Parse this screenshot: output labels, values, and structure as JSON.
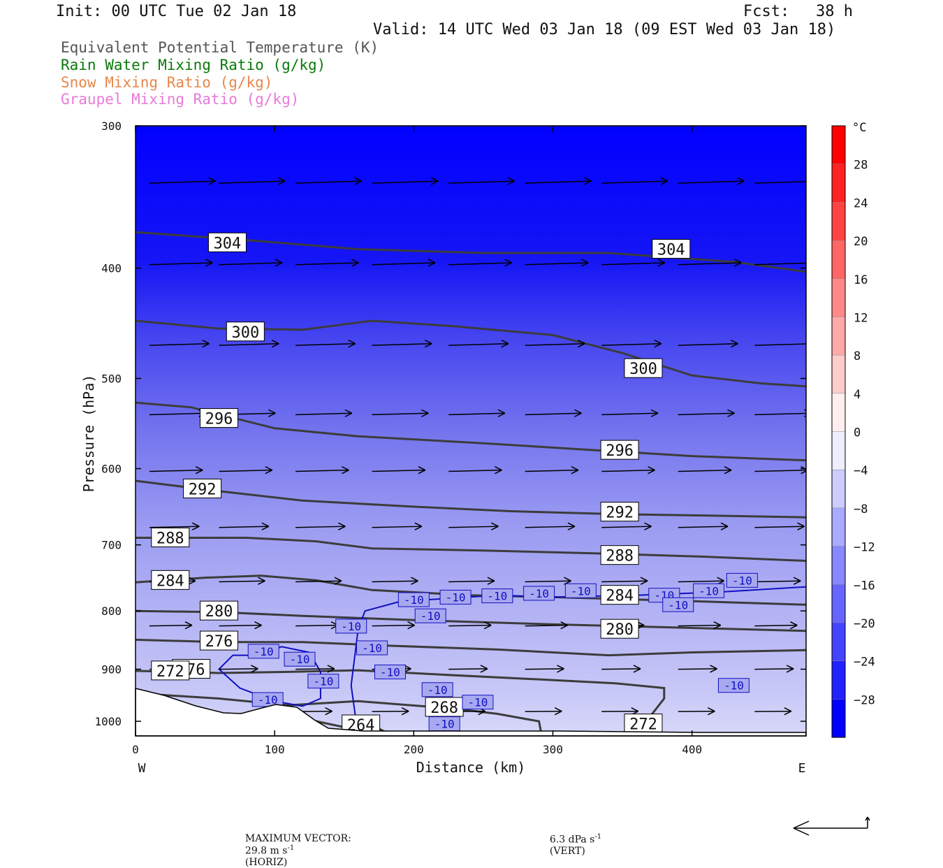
{
  "header": {
    "init": "Init: 00 UTC Tue 02 Jan 18",
    "fcst_label": "Fcst:",
    "fcst_value": "38 h",
    "valid": "Valid: 14 UTC Wed 03 Jan 18 (09 EST Wed 03 Jan 18)"
  },
  "legend": {
    "items": [
      {
        "label": "Equivalent Potential Temperature (K)",
        "color": "#555555"
      },
      {
        "label": "Rain Water Mixing Ratio (g/kg)",
        "color": "#0a7a0a"
      },
      {
        "label": "Snow Mixing Ratio (g/kg)",
        "color": "#e8874a"
      },
      {
        "label": "Graupel Mixing Ratio (g/kg)",
        "color": "#e87ad8"
      }
    ]
  },
  "chart_data": {
    "type": "heatmap",
    "xlabel": "Distance (km)",
    "ylabel": "Pressure (hPa)",
    "x_ticks": [
      0,
      100,
      200,
      300,
      400
    ],
    "y_ticks": [
      300,
      400,
      500,
      600,
      700,
      800,
      900,
      1000
    ],
    "xlim": [
      0,
      482
    ],
    "ylim": [
      300,
      1030
    ],
    "y_scale": "log",
    "west_label": "W",
    "east_label": "E",
    "colorbar": {
      "unit": "°C",
      "ticks": [
        28,
        24,
        20,
        16,
        12,
        8,
        4,
        0,
        -4,
        -8,
        -12,
        -16,
        -20,
        -24,
        -28
      ],
      "range": [
        -32,
        32
      ],
      "warm_color": "#ff0000",
      "cold_color": "#0000ff"
    },
    "theta_e_contours": [
      {
        "value": 304,
        "points": [
          [
            0,
            372
          ],
          [
            80,
            378
          ],
          [
            160,
            385
          ],
          [
            250,
            388
          ],
          [
            340,
            388
          ],
          [
            430,
            395
          ],
          [
            482,
            403
          ]
        ],
        "labels": [
          {
            "text": "304",
            "x": 66,
            "p": 380
          },
          {
            "text": "304",
            "x": 385,
            "p": 385
          }
        ]
      },
      {
        "value": 300,
        "points": [
          [
            0,
            445
          ],
          [
            60,
            452
          ],
          [
            120,
            453
          ],
          [
            170,
            445
          ],
          [
            230,
            450
          ],
          [
            300,
            458
          ],
          [
            350,
            475
          ],
          [
            400,
            497
          ],
          [
            450,
            505
          ],
          [
            482,
            508
          ]
        ],
        "labels": [
          {
            "text": "300",
            "x": 79,
            "p": 455
          },
          {
            "text": "300",
            "x": 365,
            "p": 490
          }
        ]
      },
      {
        "value": 296,
        "points": [
          [
            0,
            525
          ],
          [
            40,
            530
          ],
          [
            100,
            553
          ],
          [
            160,
            562
          ],
          [
            250,
            570
          ],
          [
            330,
            578
          ],
          [
            400,
            585
          ],
          [
            482,
            590
          ]
        ],
        "labels": [
          {
            "text": "296",
            "x": 60,
            "p": 542
          },
          {
            "text": "296",
            "x": 348,
            "p": 578
          }
        ]
      },
      {
        "value": 292,
        "points": [
          [
            0,
            615
          ],
          [
            60,
            628
          ],
          [
            120,
            640
          ],
          [
            200,
            648
          ],
          [
            270,
            654
          ],
          [
            350,
            658
          ],
          [
            420,
            660
          ],
          [
            482,
            662
          ]
        ],
        "labels": [
          {
            "text": "292",
            "x": 48,
            "p": 625
          },
          {
            "text": "292",
            "x": 348,
            "p": 655
          }
        ]
      },
      {
        "value": 288,
        "points": [
          [
            0,
            690
          ],
          [
            80,
            690
          ],
          [
            130,
            695
          ],
          [
            170,
            705
          ],
          [
            250,
            708
          ],
          [
            330,
            712
          ],
          [
            410,
            717
          ],
          [
            482,
            723
          ]
        ],
        "labels": [
          {
            "text": "288",
            "x": 25,
            "p": 690
          },
          {
            "text": "288",
            "x": 348,
            "p": 715
          }
        ]
      },
      {
        "value": 284,
        "points": [
          [
            0,
            755
          ],
          [
            50,
            748
          ],
          [
            90,
            745
          ],
          [
            130,
            752
          ],
          [
            170,
            767
          ],
          [
            240,
            775
          ],
          [
            300,
            778
          ],
          [
            380,
            783
          ],
          [
            482,
            790
          ]
        ],
        "labels": [
          {
            "text": "284",
            "x": 25,
            "p": 752
          },
          {
            "text": "284",
            "x": 348,
            "p": 775
          }
        ]
      },
      {
        "value": 280,
        "points": [
          [
            0,
            800
          ],
          [
            60,
            802
          ],
          [
            120,
            808
          ],
          [
            200,
            815
          ],
          [
            300,
            822
          ],
          [
            400,
            828
          ],
          [
            482,
            833
          ]
        ],
        "labels": [
          {
            "text": "280",
            "x": 60,
            "p": 800
          },
          {
            "text": "280",
            "x": 348,
            "p": 830
          }
        ]
      },
      {
        "value": 276,
        "points": [
          [
            0,
            848
          ],
          [
            60,
            852
          ],
          [
            120,
            852
          ],
          [
            180,
            858
          ],
          [
            260,
            865
          ],
          [
            340,
            875
          ],
          [
            400,
            870
          ],
          [
            482,
            866
          ]
        ],
        "labels": [
          {
            "text": "276",
            "x": 60,
            "p": 850
          },
          {
            "text": "276",
            "x": 40,
            "p": 900
          }
        ]
      },
      {
        "value": 272,
        "points": [
          [
            0,
            903
          ],
          [
            60,
            907
          ],
          [
            110,
            905
          ],
          [
            160,
            902
          ],
          [
            220,
            910
          ],
          [
            300,
            920
          ],
          [
            345,
            926
          ],
          [
            380,
            935
          ],
          [
            380,
            955
          ],
          [
            370,
            990
          ],
          [
            362,
            1030
          ]
        ],
        "labels": [
          {
            "text": "272",
            "x": 25,
            "p": 903
          },
          {
            "text": "272",
            "x": 365,
            "p": 1005
          }
        ]
      },
      {
        "value": 268,
        "points": [
          [
            0,
            945
          ],
          [
            60,
            955
          ],
          [
            110,
            968
          ],
          [
            160,
            960
          ],
          [
            230,
            975
          ],
          [
            260,
            985
          ],
          [
            290,
            1000
          ],
          [
            292,
            1030
          ]
        ],
        "labels": [
          {
            "text": "268",
            "x": 222,
            "p": 972
          }
        ]
      },
      {
        "value": 264,
        "points": [
          [
            0,
            978
          ],
          [
            60,
            988
          ],
          [
            110,
            990
          ],
          [
            130,
            1000
          ],
          [
            150,
            1012
          ],
          [
            175,
            1015
          ],
          [
            185,
            1030
          ]
        ],
        "labels": [
          {
            "text": "264",
            "x": 25,
            "p": 985
          },
          {
            "text": "264",
            "x": 162,
            "p": 1007
          }
        ]
      }
    ],
    "temperature_contours": [
      {
        "value": -10,
        "labels": [
          "-10",
          "-10",
          "-10",
          "-10",
          "-10",
          "-10",
          "-10",
          "-10",
          "-10",
          "-10",
          "-10",
          "-10",
          "-10",
          "-10",
          "-10",
          "-10",
          "-10",
          "-10",
          "-10",
          "-10",
          "-10"
        ]
      }
    ],
    "wind_vectors": {
      "unit": "m s-1",
      "note": "horizontal wind vectors from west to east"
    }
  },
  "footer": {
    "max_vector_label": "MAXIMUM VECTOR:",
    "horiz_value": "29.8 m s",
    "horiz_exp": "-1",
    "horiz_label": "(HORIZ)",
    "vert_value": "6.3 dPa s",
    "vert_exp": "-1",
    "vert_label": "(VERT)"
  }
}
